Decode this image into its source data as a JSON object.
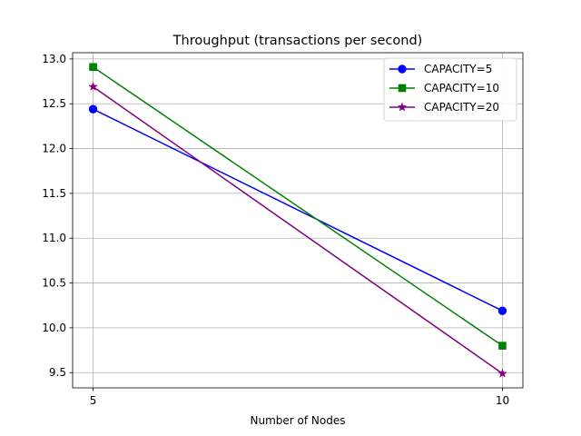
{
  "chart_data": {
    "type": "line",
    "title": "Throughput (transactions per second)",
    "xlabel": "Number of Nodes",
    "ylabel": "",
    "x": [
      5,
      10
    ],
    "xticks": [
      5,
      10
    ],
    "yticks": [
      9.5,
      10.0,
      10.5,
      11.0,
      11.5,
      12.0,
      12.5,
      13.0
    ],
    "xlim": [
      4.75,
      10.25
    ],
    "ylim": [
      9.33,
      13.07
    ],
    "grid": true,
    "legend_position": "top-right",
    "series": [
      {
        "name": "CAPACITY=5",
        "values": [
          12.44,
          10.19
        ],
        "color": "#0000ff",
        "marker": "circle"
      },
      {
        "name": "CAPACITY=10",
        "values": [
          12.91,
          9.8
        ],
        "color": "#008000",
        "marker": "square"
      },
      {
        "name": "CAPACITY=20",
        "values": [
          12.69,
          9.49
        ],
        "color": "#800080",
        "marker": "star"
      }
    ]
  }
}
